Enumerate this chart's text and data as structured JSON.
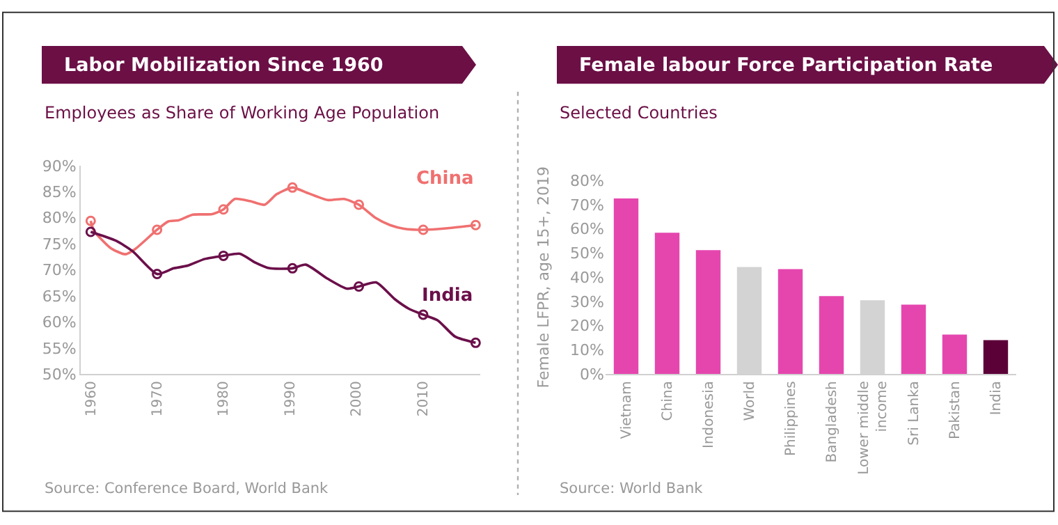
{
  "chart_data": [
    {
      "type": "line",
      "title": "Labor Mobilization Since 1960",
      "subtitle": "Employees as Share of Working Age Population",
      "xlim": [
        1958.5,
        2018.7
      ],
      "xticks": [
        1960,
        1970,
        1980,
        1990,
        2000,
        2010
      ],
      "ylim": [
        50,
        90
      ],
      "yticks": [
        {
          "value": 50,
          "label": "50%"
        },
        {
          "value": 55,
          "label": "55%"
        },
        {
          "value": 60,
          "label": "60%"
        },
        {
          "value": 65,
          "label": "65%"
        },
        {
          "value": 70,
          "label": "70%"
        },
        {
          "value": 75,
          "label": "75%"
        },
        {
          "value": 80,
          "label": "80%"
        },
        {
          "value": 85,
          "label": "85%"
        },
        {
          "value": 90,
          "label": "90%"
        }
      ],
      "legend": false,
      "series": [
        {
          "name": "China",
          "color": "#f07070",
          "x": [
            1960,
            1960.5,
            1963,
            1965.2,
            1966.7,
            1970,
            1971.7,
            1973.2,
            1975.4,
            1978.3,
            1980,
            1981.7,
            1984,
            1986.2,
            1988,
            1990.4,
            1992.8,
            1995.7,
            1998.2,
            2000.4,
            2002.9,
            2005.1,
            2007.2,
            2010.1,
            2013.8,
            2018
          ],
          "values": [
            79.4,
            77.5,
            74.2,
            73,
            74,
            77.7,
            79.3,
            79.5,
            80.6,
            80.7,
            81.6,
            83.6,
            83.2,
            82.5,
            84.5,
            85.8,
            84.7,
            83.4,
            83.6,
            82.5,
            80,
            78.6,
            77.9,
            77.7,
            78,
            78.6
          ]
        },
        {
          "name": "India",
          "color": "#6b0f4a",
          "x": [
            1960,
            1963.8,
            1966.3,
            1970,
            1972.5,
            1974.6,
            1977.2,
            1980,
            1982.5,
            1984.8,
            1987,
            1990.4,
            1992.4,
            1995.7,
            1998.6,
            2000.4,
            2003,
            2005.8,
            2008,
            2010.1,
            2012.3,
            2014.9,
            2018
          ],
          "values": [
            77.3,
            75.6,
            73.6,
            69.2,
            70.3,
            70.8,
            72.1,
            72.7,
            73.1,
            71.4,
            70.3,
            70.3,
            71,
            68.3,
            66.4,
            66.8,
            67.6,
            64.4,
            62.5,
            61.4,
            60.3,
            57.2,
            56
          ]
        },
        {
          "type": "scatter",
          "marker": "circle",
          "color": "#f07070",
          "x": [
            1960,
            1970,
            1980,
            1990.4,
            2000.4,
            2010.1,
            2018
          ],
          "values": [
            79.4,
            77.7,
            81.6,
            85.8,
            82.5,
            77.7,
            78.6
          ]
        },
        {
          "type": "scatter",
          "marker": "circle",
          "color": "#6b0f4a",
          "x": [
            1960,
            1970,
            1980,
            1990.4,
            2000.4,
            2010.1,
            2018
          ],
          "values": [
            77.3,
            69.2,
            72.7,
            70.3,
            66.8,
            61.4,
            56
          ]
        }
      ],
      "annotations": [
        "Source: Conference Board, World Bank"
      ]
    },
    {
      "type": "bar",
      "title": "Female labour Force Participation Rate",
      "subtitle": "Selected Countries",
      "ylabel": "Female LFPR, age 15+, 2019",
      "categories": [
        "Vietnam",
        "China",
        "Indonesia",
        "World",
        "Philippines",
        "Bangladesh",
        "Lower middle income",
        "Sri Lanka",
        "Pakistan",
        "India"
      ],
      "values": [
        72.6,
        58.4,
        51.2,
        44.2,
        43.4,
        32.2,
        30.5,
        28.7,
        16.3,
        14.0
      ],
      "colors": [
        "#e546ae",
        "#e546ae",
        "#e546ae",
        "#d3d3d3",
        "#e546ae",
        "#e546ae",
        "#d3d3d3",
        "#e546ae",
        "#e546ae",
        "#5c0038"
      ],
      "ylim": [
        0,
        80
      ],
      "yticks": [
        {
          "value": 0,
          "label": "0%"
        },
        {
          "value": 10,
          "label": "10%"
        },
        {
          "value": 20,
          "label": "20%"
        },
        {
          "value": 30,
          "label": "30%"
        },
        {
          "value": 40,
          "label": "40%"
        },
        {
          "value": 50,
          "label": "50%"
        },
        {
          "value": 60,
          "label": "60%"
        },
        {
          "value": 70,
          "label": "70%"
        },
        {
          "value": 80,
          "label": "80%"
        }
      ],
      "annotations": [
        "Source: World Bank"
      ]
    }
  ]
}
